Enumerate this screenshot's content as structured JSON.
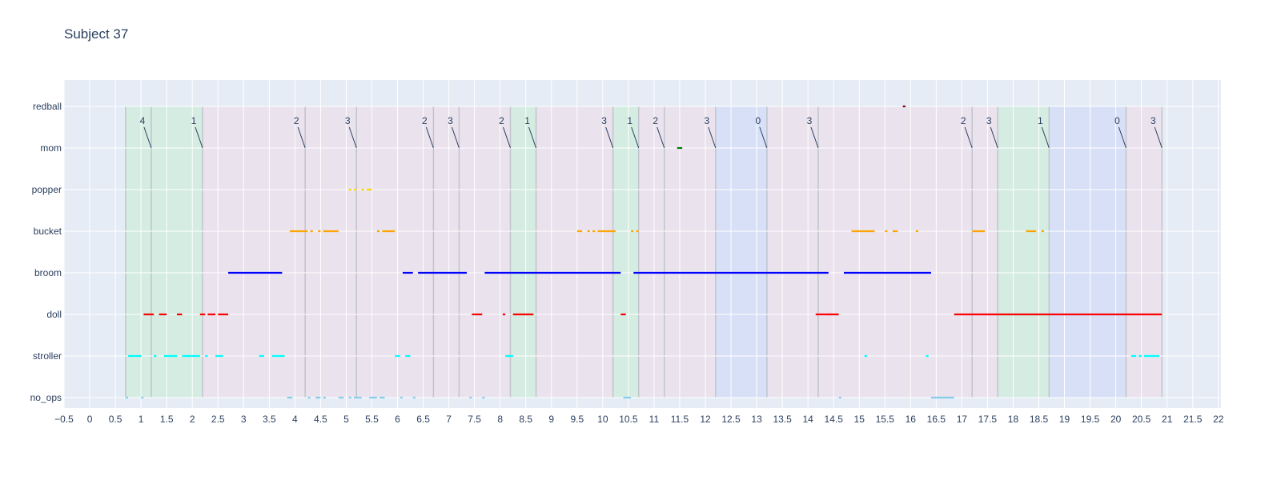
{
  "chart_data": {
    "type": "scatter",
    "title": "Subject 37",
    "xlabel": "",
    "ylabel": "",
    "xlim": [
      -0.5,
      22.05
    ],
    "xticks": [
      "−0.5",
      "0",
      "0.5",
      "1",
      "1.5",
      "2",
      "2.5",
      "3",
      "3.5",
      "4",
      "4.5",
      "5",
      "5.5",
      "6",
      "6.5",
      "7",
      "7.5",
      "8",
      "8.5",
      "9",
      "9.5",
      "10",
      "10.5",
      "11",
      "11.5",
      "12",
      "12.5",
      "13",
      "13.5",
      "14",
      "14.5",
      "15",
      "15.5",
      "16",
      "16.5",
      "17",
      "17.5",
      "18",
      "18.5",
      "19",
      "19.5",
      "20",
      "20.5",
      "21",
      "21.5",
      "22"
    ],
    "categories": [
      "no_ops",
      "stroller",
      "doll",
      "broom",
      "bucket",
      "popper",
      "mom",
      "redball"
    ],
    "grid": true,
    "colors": {
      "no_ops": "#87ceeb",
      "stroller": "#00ffff",
      "doll": "#ff0000",
      "broom": "#0000ff",
      "bucket": "#ffa500",
      "popper": "#ffd700",
      "mom": "#008000",
      "redball": "#8b0000",
      "band_green": "#90ee90",
      "band_pink": "#ffc0cb",
      "band_blue": "#a6b6ff",
      "plot_bg": "#e5ecf6",
      "text": "#2a3f5f"
    },
    "series": [
      {
        "category": "no_ops",
        "segments": [
          [
            0.7,
            0.75
          ],
          [
            1.0,
            1.05
          ],
          [
            3.85,
            3.95
          ],
          [
            4.25,
            4.3
          ],
          [
            4.4,
            4.5
          ],
          [
            4.55,
            4.6
          ],
          [
            4.85,
            4.95
          ],
          [
            5.05,
            5.1
          ],
          [
            5.15,
            5.3
          ],
          [
            5.45,
            5.6
          ],
          [
            5.65,
            5.75
          ],
          [
            6.05,
            6.1
          ],
          [
            6.3,
            6.35
          ],
          [
            7.4,
            7.45
          ],
          [
            7.65,
            7.7
          ],
          [
            10.4,
            10.55
          ],
          [
            14.6,
            14.65
          ],
          [
            16.4,
            16.85
          ]
        ]
      },
      {
        "category": "stroller",
        "segments": [
          [
            0.75,
            1.0
          ],
          [
            1.25,
            1.3
          ],
          [
            1.45,
            1.7
          ],
          [
            1.8,
            2.15
          ],
          [
            2.25,
            2.3
          ],
          [
            2.45,
            2.6
          ],
          [
            3.3,
            3.4
          ],
          [
            3.55,
            3.8
          ],
          [
            5.95,
            6.05
          ],
          [
            6.15,
            6.25
          ],
          [
            8.1,
            8.25
          ],
          [
            15.1,
            15.15
          ],
          [
            16.3,
            16.35
          ],
          [
            20.3,
            20.4
          ],
          [
            20.45,
            20.5
          ],
          [
            20.55,
            20.85
          ]
        ]
      },
      {
        "category": "doll",
        "segments": [
          [
            1.05,
            1.25
          ],
          [
            1.35,
            1.5
          ],
          [
            1.7,
            1.8
          ],
          [
            2.15,
            2.25
          ],
          [
            2.3,
            2.45
          ],
          [
            2.5,
            2.7
          ],
          [
            7.45,
            7.65
          ],
          [
            8.05,
            8.1
          ],
          [
            8.25,
            8.65
          ],
          [
            10.35,
            10.45
          ],
          [
            14.15,
            14.35
          ],
          [
            14.35,
            14.6
          ],
          [
            16.85,
            20.9
          ]
        ]
      },
      {
        "category": "broom",
        "segments": [
          [
            2.7,
            3.75
          ],
          [
            6.1,
            6.3
          ],
          [
            6.4,
            7.35
          ],
          [
            7.7,
            10.35
          ],
          [
            10.6,
            14.4
          ],
          [
            14.7,
            16.4
          ]
        ]
      },
      {
        "category": "bucket",
        "segments": [
          [
            3.9,
            4.25
          ],
          [
            4.3,
            4.35
          ],
          [
            4.45,
            4.5
          ],
          [
            4.55,
            4.85
          ],
          [
            5.6,
            5.65
          ],
          [
            5.7,
            5.95
          ],
          [
            9.5,
            9.6
          ],
          [
            9.7,
            9.75
          ],
          [
            9.8,
            9.85
          ],
          [
            9.9,
            10.25
          ],
          [
            10.55,
            10.6
          ],
          [
            10.65,
            10.7
          ],
          [
            14.85,
            15.3
          ],
          [
            15.5,
            15.55
          ],
          [
            15.65,
            15.75
          ],
          [
            16.1,
            16.15
          ],
          [
            17.2,
            17.45
          ],
          [
            18.25,
            18.45
          ],
          [
            18.55,
            18.6
          ]
        ]
      },
      {
        "category": "popper",
        "segments": [
          [
            5.05,
            5.1
          ],
          [
            5.15,
            5.2
          ],
          [
            5.3,
            5.35
          ],
          [
            5.4,
            5.5
          ]
        ]
      },
      {
        "category": "mom",
        "segments": [
          [
            11.45,
            11.55
          ]
        ]
      },
      {
        "category": "redball",
        "segments": [
          [
            15.85,
            15.9
          ]
        ]
      }
    ],
    "phases": [
      {
        "label": "4",
        "start": 0.7,
        "end": 1.2,
        "color": "green"
      },
      {
        "label": "1",
        "start": 1.2,
        "end": 2.2,
        "color": "green"
      },
      {
        "label": "2",
        "start": 2.2,
        "end": 4.2,
        "color": "pink"
      },
      {
        "label": "3",
        "start": 4.2,
        "end": 5.2,
        "color": "pink"
      },
      {
        "label": "2",
        "start": 5.2,
        "end": 6.7,
        "color": "pink"
      },
      {
        "label": "3",
        "start": 6.7,
        "end": 7.2,
        "color": "pink"
      },
      {
        "label": "2",
        "start": 7.2,
        "end": 8.2,
        "color": "pink"
      },
      {
        "label": "1",
        "start": 8.2,
        "end": 8.7,
        "color": "green"
      },
      {
        "label": "3",
        "start": 8.7,
        "end": 10.2,
        "color": "pink"
      },
      {
        "label": "1",
        "start": 10.2,
        "end": 10.7,
        "color": "green"
      },
      {
        "label": "2",
        "start": 10.7,
        "end": 11.2,
        "color": "pink"
      },
      {
        "label": "3",
        "start": 11.2,
        "end": 12.2,
        "color": "pink"
      },
      {
        "label": "0",
        "start": 12.2,
        "end": 13.2,
        "color": "blue"
      },
      {
        "label": "3",
        "start": 13.2,
        "end": 14.2,
        "color": "pink"
      },
      {
        "label": "2",
        "start": 14.2,
        "end": 17.2,
        "color": "pink"
      },
      {
        "label": "3",
        "start": 17.2,
        "end": 17.7,
        "color": "pink"
      },
      {
        "label": "1",
        "start": 17.7,
        "end": 18.7,
        "color": "green"
      },
      {
        "label": "0",
        "start": 18.7,
        "end": 20.2,
        "color": "blue"
      },
      {
        "label": "3",
        "start": 20.2,
        "end": 20.9,
        "color": "pink"
      }
    ]
  }
}
